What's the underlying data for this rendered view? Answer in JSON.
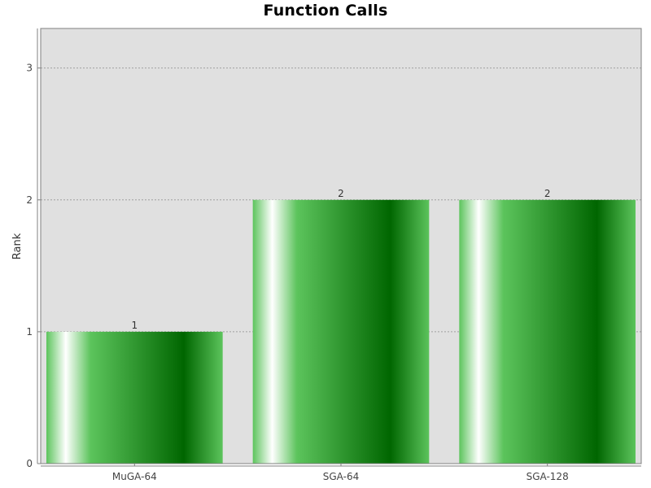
{
  "chart_data": {
    "type": "bar",
    "title": "Function Calls",
    "xlabel": "",
    "ylabel": "Rank",
    "categories": [
      "MuGA-64",
      "SGA-64",
      "SGA-128"
    ],
    "values": [
      1,
      2,
      2
    ],
    "data_labels": [
      "1",
      "2",
      "2"
    ],
    "yticks": [
      0,
      1,
      2,
      3
    ],
    "ylim": [
      0,
      3.3
    ],
    "grid": true,
    "legend": "none",
    "colors": {
      "plot_background": "#e0e0e0",
      "bar_light": "#ffffff",
      "bar_mid": "#5cc45c",
      "bar_dark": "#006600",
      "gridline": "#a0a0a0"
    }
  }
}
